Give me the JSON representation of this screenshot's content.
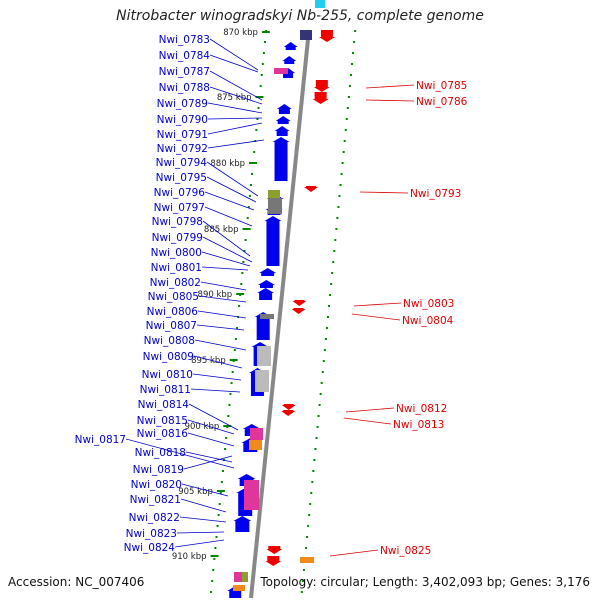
{
  "header": {
    "title_italic": "Nitrobacter winogradskyi Nb",
    "title_dash": "-",
    "title_strain": "255",
    "title_rest": ", complete genome"
  },
  "footer": {
    "accession": "Accession: NC_007406",
    "summary": "Topology: circular; Length: 3,402,093 bp; Genes: 3,176"
  },
  "colors": {
    "forward_gene": "#0000ee",
    "reverse_gene": "#ee0000",
    "left_label": "#0000cc",
    "right_label": "#dd0000",
    "axis": "#888888",
    "tick_mark": "#008800",
    "magenta": "#e0359a",
    "grey": "#777777",
    "light_grey": "#bbbbbb",
    "olive": "#8aa02c",
    "orange": "#f08a1c",
    "cyan": "#22ccee",
    "navy": "#333377"
  },
  "scale_labels": [
    "870 kbp",
    "875 kbp",
    "880 kbp",
    "885 kbp",
    "890 kbp",
    "895 kbp",
    "900 kbp",
    "905 kbp",
    "910 kbp"
  ],
  "left_genes": [
    "Nwi_0783",
    "Nwi_0784",
    "Nwi_0787",
    "Nwi_0788",
    "Nwi_0789",
    "Nwi_0790",
    "Nwi_0791",
    "Nwi_0792",
    "Nwi_0794",
    "Nwi_0795",
    "Nwi_0796",
    "Nwi_0797",
    "Nwi_0798",
    "Nwi_0799",
    "Nwi_0800",
    "Nwi_0801",
    "Nwi_0802",
    "Nwi_0805",
    "Nwi_0806",
    "Nwi_0807",
    "Nwi_0808",
    "Nwi_0809",
    "Nwi_0810",
    "Nwi_0811",
    "Nwi_0814",
    "Nwi_0815",
    "Nwi_0816",
    "Nwi_0817",
    "Nwi_0818",
    "Nwi_0819",
    "Nwi_0820",
    "Nwi_0821",
    "Nwi_0822",
    "Nwi_0823",
    "Nwi_0824"
  ],
  "right_genes": [
    "Nwi_0785",
    "Nwi_0786",
    "Nwi_0793",
    "Nwi_0803",
    "Nwi_0804",
    "Nwi_0812",
    "Nwi_0813",
    "Nwi_0825"
  ]
}
